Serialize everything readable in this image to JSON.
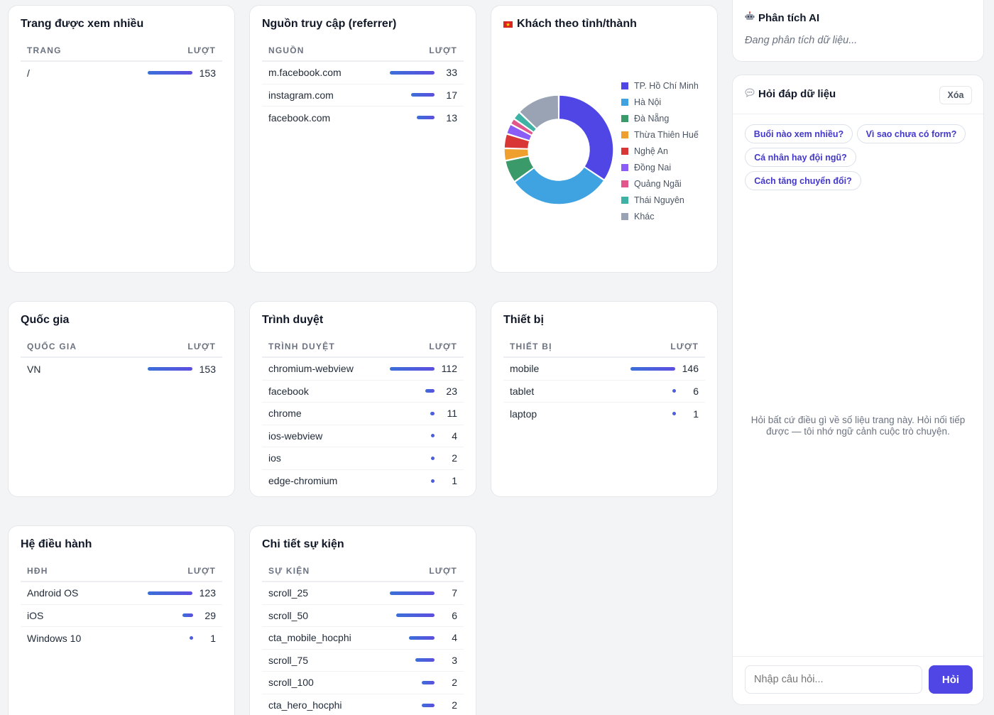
{
  "top_pages": {
    "title": "Trang được xem nhiều",
    "col1": "TRANG",
    "col2": "LƯỢT",
    "rows": [
      {
        "label": "/",
        "value": 153,
        "ratio": 1.0
      }
    ]
  },
  "referrers": {
    "title": "Nguồn truy cập (referrer)",
    "col1": "NGUỒN",
    "col2": "LƯỢT",
    "rows": [
      {
        "label": "m.facebook.com",
        "value": 33,
        "ratio": 1.0
      },
      {
        "label": "instagram.com",
        "value": 17,
        "ratio": 0.52
      },
      {
        "label": "facebook.com",
        "value": 13,
        "ratio": 0.39
      }
    ]
  },
  "provinces": {
    "title": "Khách theo tỉnh/thành",
    "flag_icon": "vietnam-flag-icon"
  },
  "chart_data": {
    "type": "pie",
    "donut": true,
    "categories": [
      "TP. Hồ Chí Minh",
      "Hà Nội",
      "Đà Nẵng",
      "Thừa Thiên Huế",
      "Nghệ An",
      "Đồng Nai",
      "Quảng Ngãi",
      "Thái Nguyên",
      "Khác"
    ],
    "values": [
      56,
      50,
      11,
      6,
      7,
      5,
      3,
      4,
      21
    ],
    "colors": [
      "#4f46e5",
      "#3ea3e0",
      "#3b9a69",
      "#ef9f2d",
      "#d93636",
      "#8b5cf6",
      "#e2568c",
      "#3fb2a6",
      "#9aa3b4"
    ],
    "legend_position": "right"
  },
  "countries": {
    "title": "Quốc gia",
    "col1": "QUỐC GIA",
    "col2": "LƯỢT",
    "rows": [
      {
        "label": "VN",
        "value": 153,
        "ratio": 1.0
      }
    ]
  },
  "browsers": {
    "title": "Trình duyệt",
    "col1": "TRÌNH DUYỆT",
    "col2": "LƯỢT",
    "rows": [
      {
        "label": "chromium-webview",
        "value": 112,
        "ratio": 1.0
      },
      {
        "label": "facebook",
        "value": 23,
        "ratio": 0.21
      },
      {
        "label": "chrome",
        "value": 11,
        "ratio": 0.1
      },
      {
        "label": "ios-webview",
        "value": 4,
        "ratio": 0.04
      },
      {
        "label": "ios",
        "value": 2,
        "ratio": 0.02
      },
      {
        "label": "edge-chromium",
        "value": 1,
        "ratio": 0.01
      }
    ]
  },
  "devices": {
    "title": "Thiết bị",
    "col1": "THIẾT BỊ",
    "col2": "LƯỢT",
    "rows": [
      {
        "label": "mobile",
        "value": 146,
        "ratio": 1.0
      },
      {
        "label": "tablet",
        "value": 6,
        "ratio": 0.04
      },
      {
        "label": "laptop",
        "value": 1,
        "ratio": 0.01
      }
    ]
  },
  "os": {
    "title": "Hệ điều hành",
    "col1": "HĐH",
    "col2": "LƯỢT",
    "rows": [
      {
        "label": "Android OS",
        "value": 123,
        "ratio": 1.0
      },
      {
        "label": "iOS",
        "value": 29,
        "ratio": 0.24
      },
      {
        "label": "Windows 10",
        "value": 1,
        "ratio": 0.01
      }
    ]
  },
  "events": {
    "title": "Chi tiết sự kiện",
    "col1": "SỰ KIỆN",
    "col2": "LƯỢT",
    "rows": [
      {
        "label": "scroll_25",
        "value": 7,
        "ratio": 1.0
      },
      {
        "label": "scroll_50",
        "value": 6,
        "ratio": 0.86
      },
      {
        "label": "cta_mobile_hocphi",
        "value": 4,
        "ratio": 0.57
      },
      {
        "label": "scroll_75",
        "value": 3,
        "ratio": 0.43
      },
      {
        "label": "scroll_100",
        "value": 2,
        "ratio": 0.29
      },
      {
        "label": "cta_hero_hocphi",
        "value": 2,
        "ratio": 0.29
      }
    ]
  },
  "ai_panel": {
    "title": "Phân tích AI",
    "icon": "robot-icon",
    "status": "Đang phân tích dữ liệu..."
  },
  "qa_panel": {
    "title": "Hỏi đáp dữ liệu",
    "icon": "speech-bubble-icon",
    "clear_label": "Xóa",
    "suggestions": [
      "Buổi nào xem nhiều?",
      "Vì sao chưa có form?",
      "Cá nhân hay đội ngũ?",
      "Cách tăng chuyển đổi?"
    ],
    "empty_hint": "Hỏi bất cứ điều gì về số liệu trang này. Hỏi nối tiếp được — tôi nhớ ngữ cảnh cuộc trò chuyện.",
    "input_placeholder": "Nhập câu hỏi...",
    "submit_label": "Hỏi"
  }
}
